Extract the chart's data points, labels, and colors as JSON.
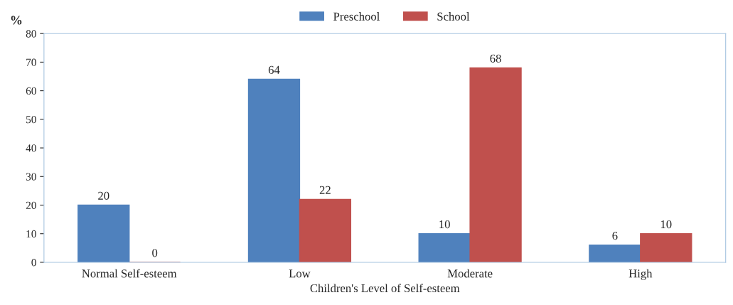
{
  "chart_data": {
    "type": "bar",
    "ylabel": "%",
    "xlabel": "Children's Level of Self-esteem",
    "categories": [
      "Normal Self-esteem",
      "Low",
      "Moderate",
      "High"
    ],
    "series": [
      {
        "name": "Preschool",
        "color": "#4f81bd",
        "values": [
          20,
          64,
          10,
          6
        ]
      },
      {
        "name": "School",
        "color": "#c0504d",
        "values": [
          0,
          22,
          68,
          10
        ]
      }
    ],
    "ylim": [
      0,
      80
    ],
    "yticks": [
      0,
      10,
      20,
      30,
      40,
      50,
      60,
      70,
      80
    ],
    "data_labels": true,
    "grid": false,
    "legend": "top"
  }
}
